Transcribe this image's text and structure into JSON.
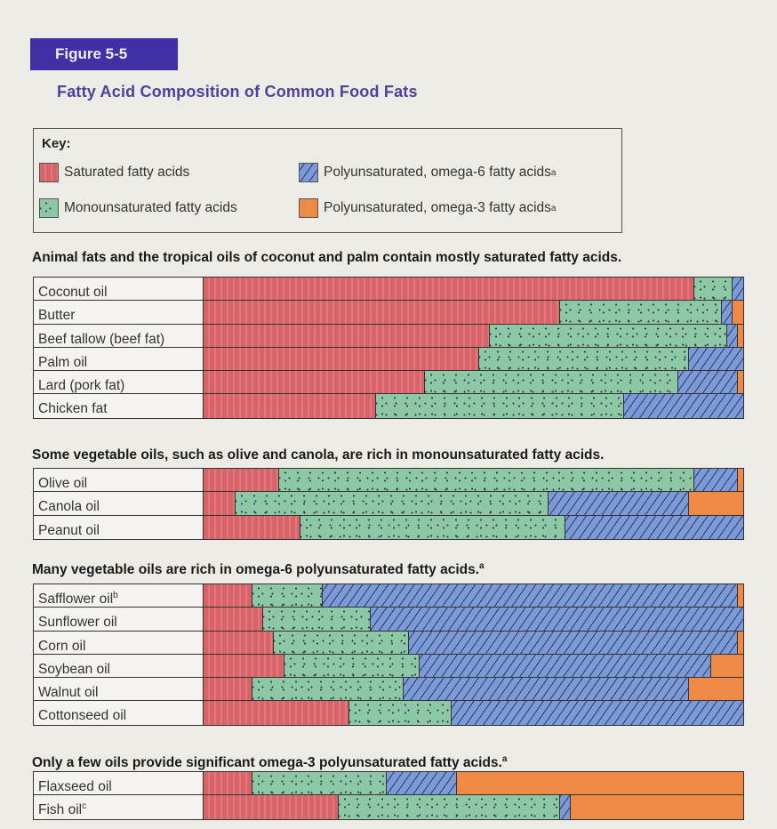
{
  "figure_label": "Figure 5-5",
  "chart_data": {
    "type": "bar",
    "orientation": "horizontal",
    "stacked": true,
    "unit": "percent of total fatty acids",
    "xlim": [
      0,
      100
    ],
    "title": "Fatty Acid Composition of Common Food Fats",
    "legend": {
      "title": "Key:",
      "placement": "top",
      "entries": [
        {
          "key": "sat",
          "label": "Saturated fatty acids",
          "sup": "",
          "color": "#d9636a",
          "pattern": "vertical-lines"
        },
        {
          "key": "o6",
          "label": "Polyunsaturated, omega-6 fatty acids",
          "sup": "a",
          "color": "#7c9ad8",
          "pattern": "diagonal-hatch"
        },
        {
          "key": "mono",
          "label": "Monounsaturated fatty acids",
          "sup": "",
          "color": "#8dc8a6",
          "pattern": "dots"
        },
        {
          "key": "o3",
          "label": "Polyunsaturated, omega-3 fatty acids",
          "sup": "a",
          "color": "#ef8a46",
          "pattern": "solid"
        }
      ]
    },
    "series_order": [
      "sat",
      "mono",
      "o6",
      "o3"
    ],
    "groups": [
      {
        "heading": "Animal fats and the tropical oils of coconut and palm contain mostly saturated fatty acids.",
        "sup": "",
        "rows": [
          {
            "label": "Coconut oil",
            "sup": "",
            "values": [
              91,
              7,
              2,
              0
            ]
          },
          {
            "label": "Butter",
            "sup": "",
            "values": [
              66,
              30,
              2,
              2
            ]
          },
          {
            "label": "Beef tallow (beef fat)",
            "sup": "",
            "values": [
              53,
              44,
              2,
              1
            ]
          },
          {
            "label": "Palm oil",
            "sup": "",
            "values": [
              51,
              39,
              10,
              0
            ]
          },
          {
            "label": "Lard (pork fat)",
            "sup": "",
            "values": [
              41,
              47,
              11,
              1
            ]
          },
          {
            "label": "Chicken fat",
            "sup": "",
            "values": [
              32,
              46,
              22,
              0
            ]
          }
        ]
      },
      {
        "heading": "Some vegetable oils, such as olive and canola, are rich in monounsaturated fatty acids.",
        "sup": "",
        "rows": [
          {
            "label": "Olive oil",
            "sup": "",
            "values": [
              14,
              77,
              8,
              1
            ]
          },
          {
            "label": "Canola oil",
            "sup": "",
            "values": [
              6,
              58,
              26,
              10
            ]
          },
          {
            "label": "Peanut oil",
            "sup": "",
            "values": [
              18,
              49,
              33,
              0
            ]
          }
        ]
      },
      {
        "heading": "Many vegetable oils are rich in omega-6 polyunsaturated fatty acids.",
        "sup": "a",
        "rows": [
          {
            "label": "Safflower oil",
            "sup": "b",
            "values": [
              9,
              13,
              77,
              1
            ]
          },
          {
            "label": "Sunflower oil",
            "sup": "",
            "values": [
              11,
              20,
              69,
              0
            ]
          },
          {
            "label": "Corn oil",
            "sup": "",
            "values": [
              13,
              25,
              61,
              1
            ]
          },
          {
            "label": "Soybean oil",
            "sup": "",
            "values": [
              15,
              25,
              54,
              6
            ]
          },
          {
            "label": "Walnut oil",
            "sup": "",
            "values": [
              9,
              28,
              53,
              10
            ]
          },
          {
            "label": "Cottonseed oil",
            "sup": "",
            "values": [
              27,
              19,
              54,
              0
            ]
          }
        ]
      },
      {
        "heading": "Only a few oils provide significant omega-3 polyunsaturated fatty acids.",
        "sup": "a",
        "rows": [
          {
            "label": "Flaxseed oil",
            "sup": "",
            "values": [
              9,
              25,
              13,
              53
            ]
          },
          {
            "label": "Fish oil",
            "sup": "c",
            "values": [
              25,
              41,
              2,
              32
            ]
          }
        ]
      }
    ]
  }
}
